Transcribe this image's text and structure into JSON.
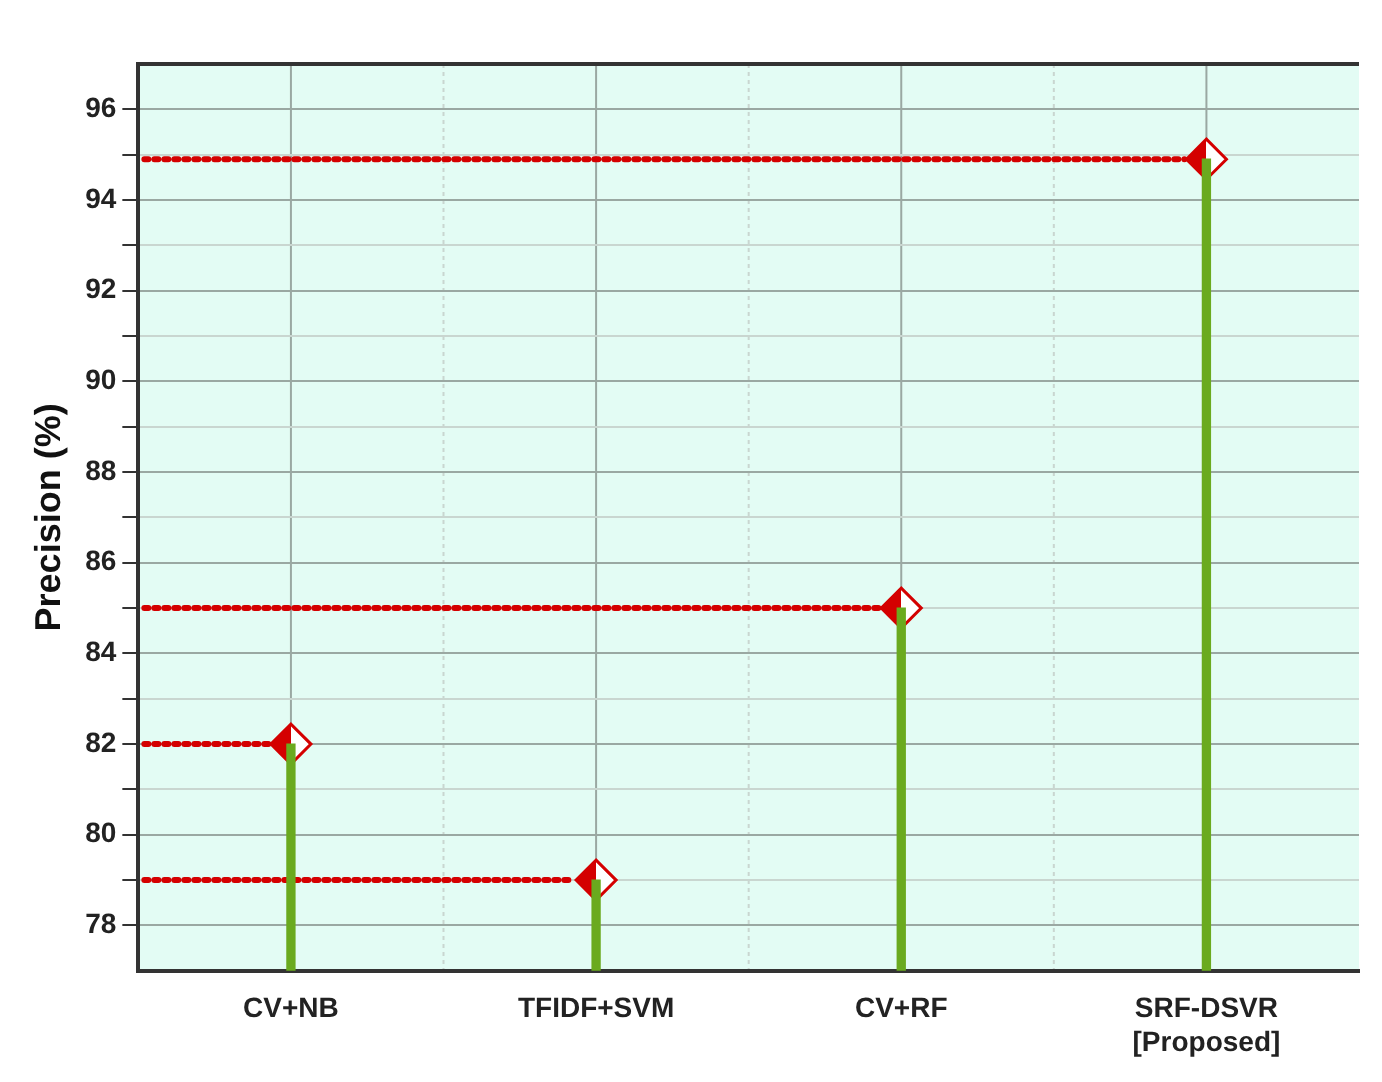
{
  "chart_data": {
    "type": "bar",
    "ylabel": "Precision (%)",
    "categories": [
      "CV+NB",
      "TFIDF+SVM",
      "CV+RF",
      "SRF-DSVR [Proposed]"
    ],
    "series": [
      {
        "type": "bar",
        "color": "#6aaa1e",
        "values": [
          82,
          79,
          85,
          94.9
        ]
      },
      {
        "type": "scatter",
        "color": "#d40000",
        "x": [
          "CV+NB",
          "TFIDF+SVM",
          "CV+RF",
          "SRF-DSVR [Proposed]"
        ],
        "values": [
          82,
          79,
          85,
          94.9
        ]
      }
    ],
    "ref_lines": [
      {
        "axis": "y",
        "value": 82,
        "color": "#d40000",
        "line_style": "dotted"
      },
      {
        "axis": "y",
        "value": 79,
        "color": "#d40000",
        "line_style": "dotted"
      },
      {
        "axis": "y",
        "value": 85,
        "color": "#d40000",
        "line_style": "dotted"
      },
      {
        "axis": "y",
        "value": 94.9,
        "color": "#d40000",
        "line_style": "dotted"
      }
    ],
    "ylim": [
      77,
      97
    ],
    "yticks": [
      78,
      {
        "value": 79,
        "label": null
      },
      80,
      {
        "value": 81,
        "label": null
      },
      82,
      {
        "value": 83,
        "label": null
      },
      84,
      {
        "value": 85,
        "label": null
      },
      86,
      {
        "value": 87,
        "label": null
      },
      88,
      {
        "value": 89,
        "label": null
      },
      90,
      {
        "value": 91,
        "label": null
      },
      92,
      {
        "value": 93,
        "label": null
      },
      94,
      {
        "value": 95,
        "label": null
      },
      96
    ],
    "grid": true,
    "marker": "diamond"
  }
}
